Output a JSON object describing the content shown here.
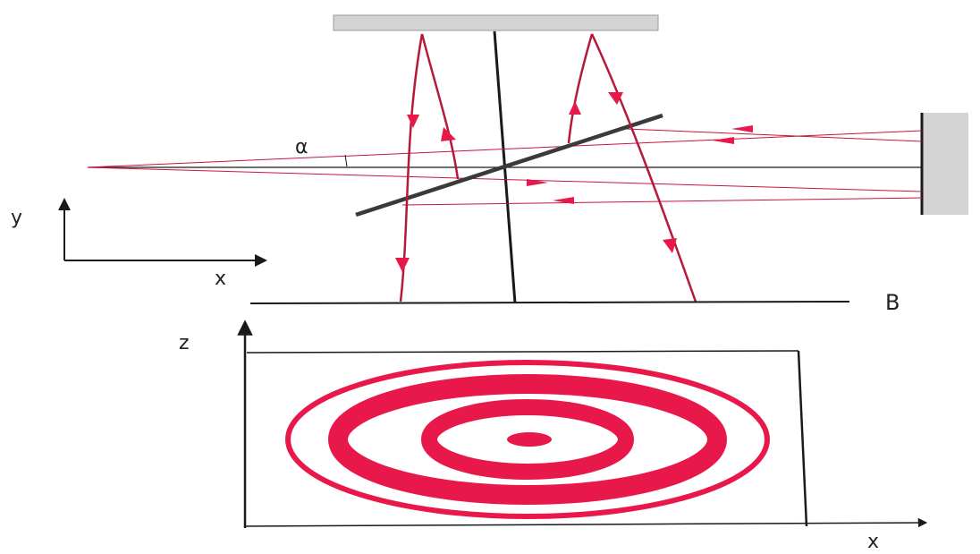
{
  "labels": {
    "alpha": "α",
    "y_axis": "y",
    "x_axis_top": "x",
    "plane": "B",
    "z_axis": "z",
    "x_axis_bottom": "x"
  },
  "colors": {
    "ray": "#c8163c",
    "ring": "#e8194a",
    "line": "#1a1a1a",
    "mirror": "#d4d4d4",
    "splitter": "#3a3a3a"
  },
  "fringes": {
    "ring_count": 4,
    "has_center_spot": true
  }
}
